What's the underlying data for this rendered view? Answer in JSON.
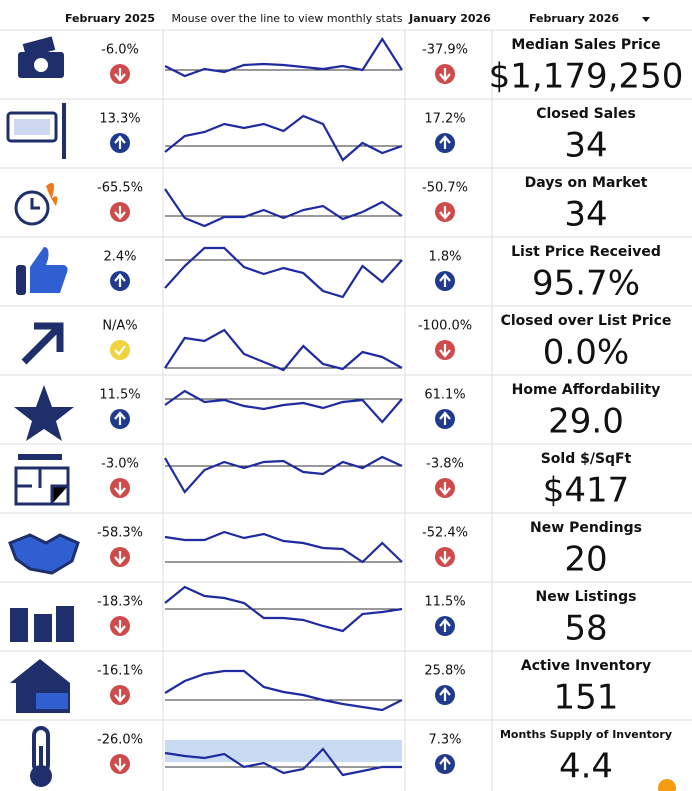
{
  "header": {
    "col1": "February 2025",
    "hint": "Mouse over the line to view monthly stats",
    "col3": "January 2026",
    "col4": "February 2026"
  },
  "trend_ylim": [
    0,
    64
  ],
  "rows": [
    {
      "title": "Median Sales Price",
      "value": "$1,179,250",
      "prev_year_change": "-6.0%",
      "prev_year_dir": "down",
      "prev_month_change": "-37.9%",
      "prev_month_dir": "down",
      "trend": [
        28,
        18,
        25,
        22,
        29,
        30,
        29,
        27,
        25,
        28,
        24,
        55,
        24
      ],
      "trend_ref": 24
    },
    {
      "title": "Closed Sales",
      "value": "34",
      "prev_year_change": "13.3%",
      "prev_year_dir": "up",
      "prev_month_change": "17.2%",
      "prev_month_dir": "up",
      "trend": [
        11,
        27,
        31,
        39,
        35,
        39,
        32,
        47,
        39,
        3,
        20,
        10,
        17
      ],
      "trend_ref": 17
    },
    {
      "title": "Days on Market",
      "value": "34",
      "prev_year_change": "-65.5%",
      "prev_year_dir": "down",
      "prev_month_change": "-50.7%",
      "prev_month_dir": "down",
      "trend": [
        43,
        14,
        6,
        15,
        15,
        22,
        14,
        22,
        26,
        13,
        20,
        30,
        16
      ],
      "trend_ref": 16
    },
    {
      "title": "List Price Received",
      "value": "95.7%",
      "prev_year_change": "2.4%",
      "prev_year_dir": "up",
      "prev_month_change": "1.8%",
      "prev_month_dir": "up",
      "trend": [
        13,
        35,
        53,
        53,
        34,
        27,
        33,
        28,
        10,
        4,
        35,
        19,
        41
      ],
      "trend_ref": 41
    },
    {
      "title": "Closed over List Price",
      "value": "0.0%",
      "prev_year_change": "N/A%",
      "prev_year_dir": "flat",
      "prev_month_change": "-100.0%",
      "prev_month_dir": "down",
      "trend": [
        2,
        32,
        29,
        40,
        16,
        8,
        0,
        24,
        6,
        1,
        18,
        13,
        2
      ],
      "trend_ref": 2
    },
    {
      "title": "Home Affordability",
      "value": "29.0",
      "prev_year_change": "11.5%",
      "prev_year_dir": "up",
      "prev_month_change": "61.1%",
      "prev_month_dir": "up",
      "trend": [
        34,
        48,
        37,
        39,
        33,
        30,
        34,
        36,
        31,
        37,
        39,
        17,
        40
      ],
      "trend_ref": 40
    },
    {
      "title": "Sold $/SqFt",
      "value": "$417",
      "prev_year_change": "-3.0%",
      "prev_year_dir": "down",
      "prev_month_change": "-3.8%",
      "prev_month_dir": "down",
      "trend": [
        50,
        16,
        38,
        46,
        40,
        46,
        47,
        36,
        34,
        46,
        40,
        51,
        42
      ],
      "trend_ref": 42
    },
    {
      "title": "New Pendings",
      "value": "20",
      "prev_year_change": "-58.3%",
      "prev_year_dir": "down",
      "prev_month_change": "-52.4%",
      "prev_month_dir": "down",
      "trend": [
        40,
        37,
        37,
        45,
        39,
        43,
        36,
        34,
        29,
        28,
        15,
        34,
        15
      ],
      "trend_ref": 15
    },
    {
      "title": "New Listings",
      "value": "58",
      "prev_year_change": "-18.3%",
      "prev_year_dir": "down",
      "prev_month_change": "11.5%",
      "prev_month_dir": "up",
      "trend": [
        43,
        59,
        50,
        48,
        43,
        28,
        28,
        26,
        20,
        15,
        32,
        34,
        37
      ],
      "trend_ref": 37
    },
    {
      "title": "Active Inventory",
      "value": "151",
      "prev_year_change": "-16.1%",
      "prev_year_dir": "down",
      "prev_month_change": "25.8%",
      "prev_month_dir": "up",
      "trend": [
        22,
        34,
        41,
        44,
        44,
        28,
        23,
        20,
        15,
        11,
        8,
        5,
        15
      ],
      "trend_ref": 15
    },
    {
      "title": "Months Supply of Inventory",
      "value": "4.4",
      "prev_year_change": "-26.0%",
      "prev_year_dir": "down",
      "prev_month_change": "7.3%",
      "prev_month_dir": "up",
      "trend": [
        31,
        28,
        26,
        30,
        17,
        21,
        11,
        15,
        35,
        9,
        13,
        17,
        17
      ],
      "trend_ref": 17,
      "trend_band": [
        22,
        44
      ]
    }
  ]
}
